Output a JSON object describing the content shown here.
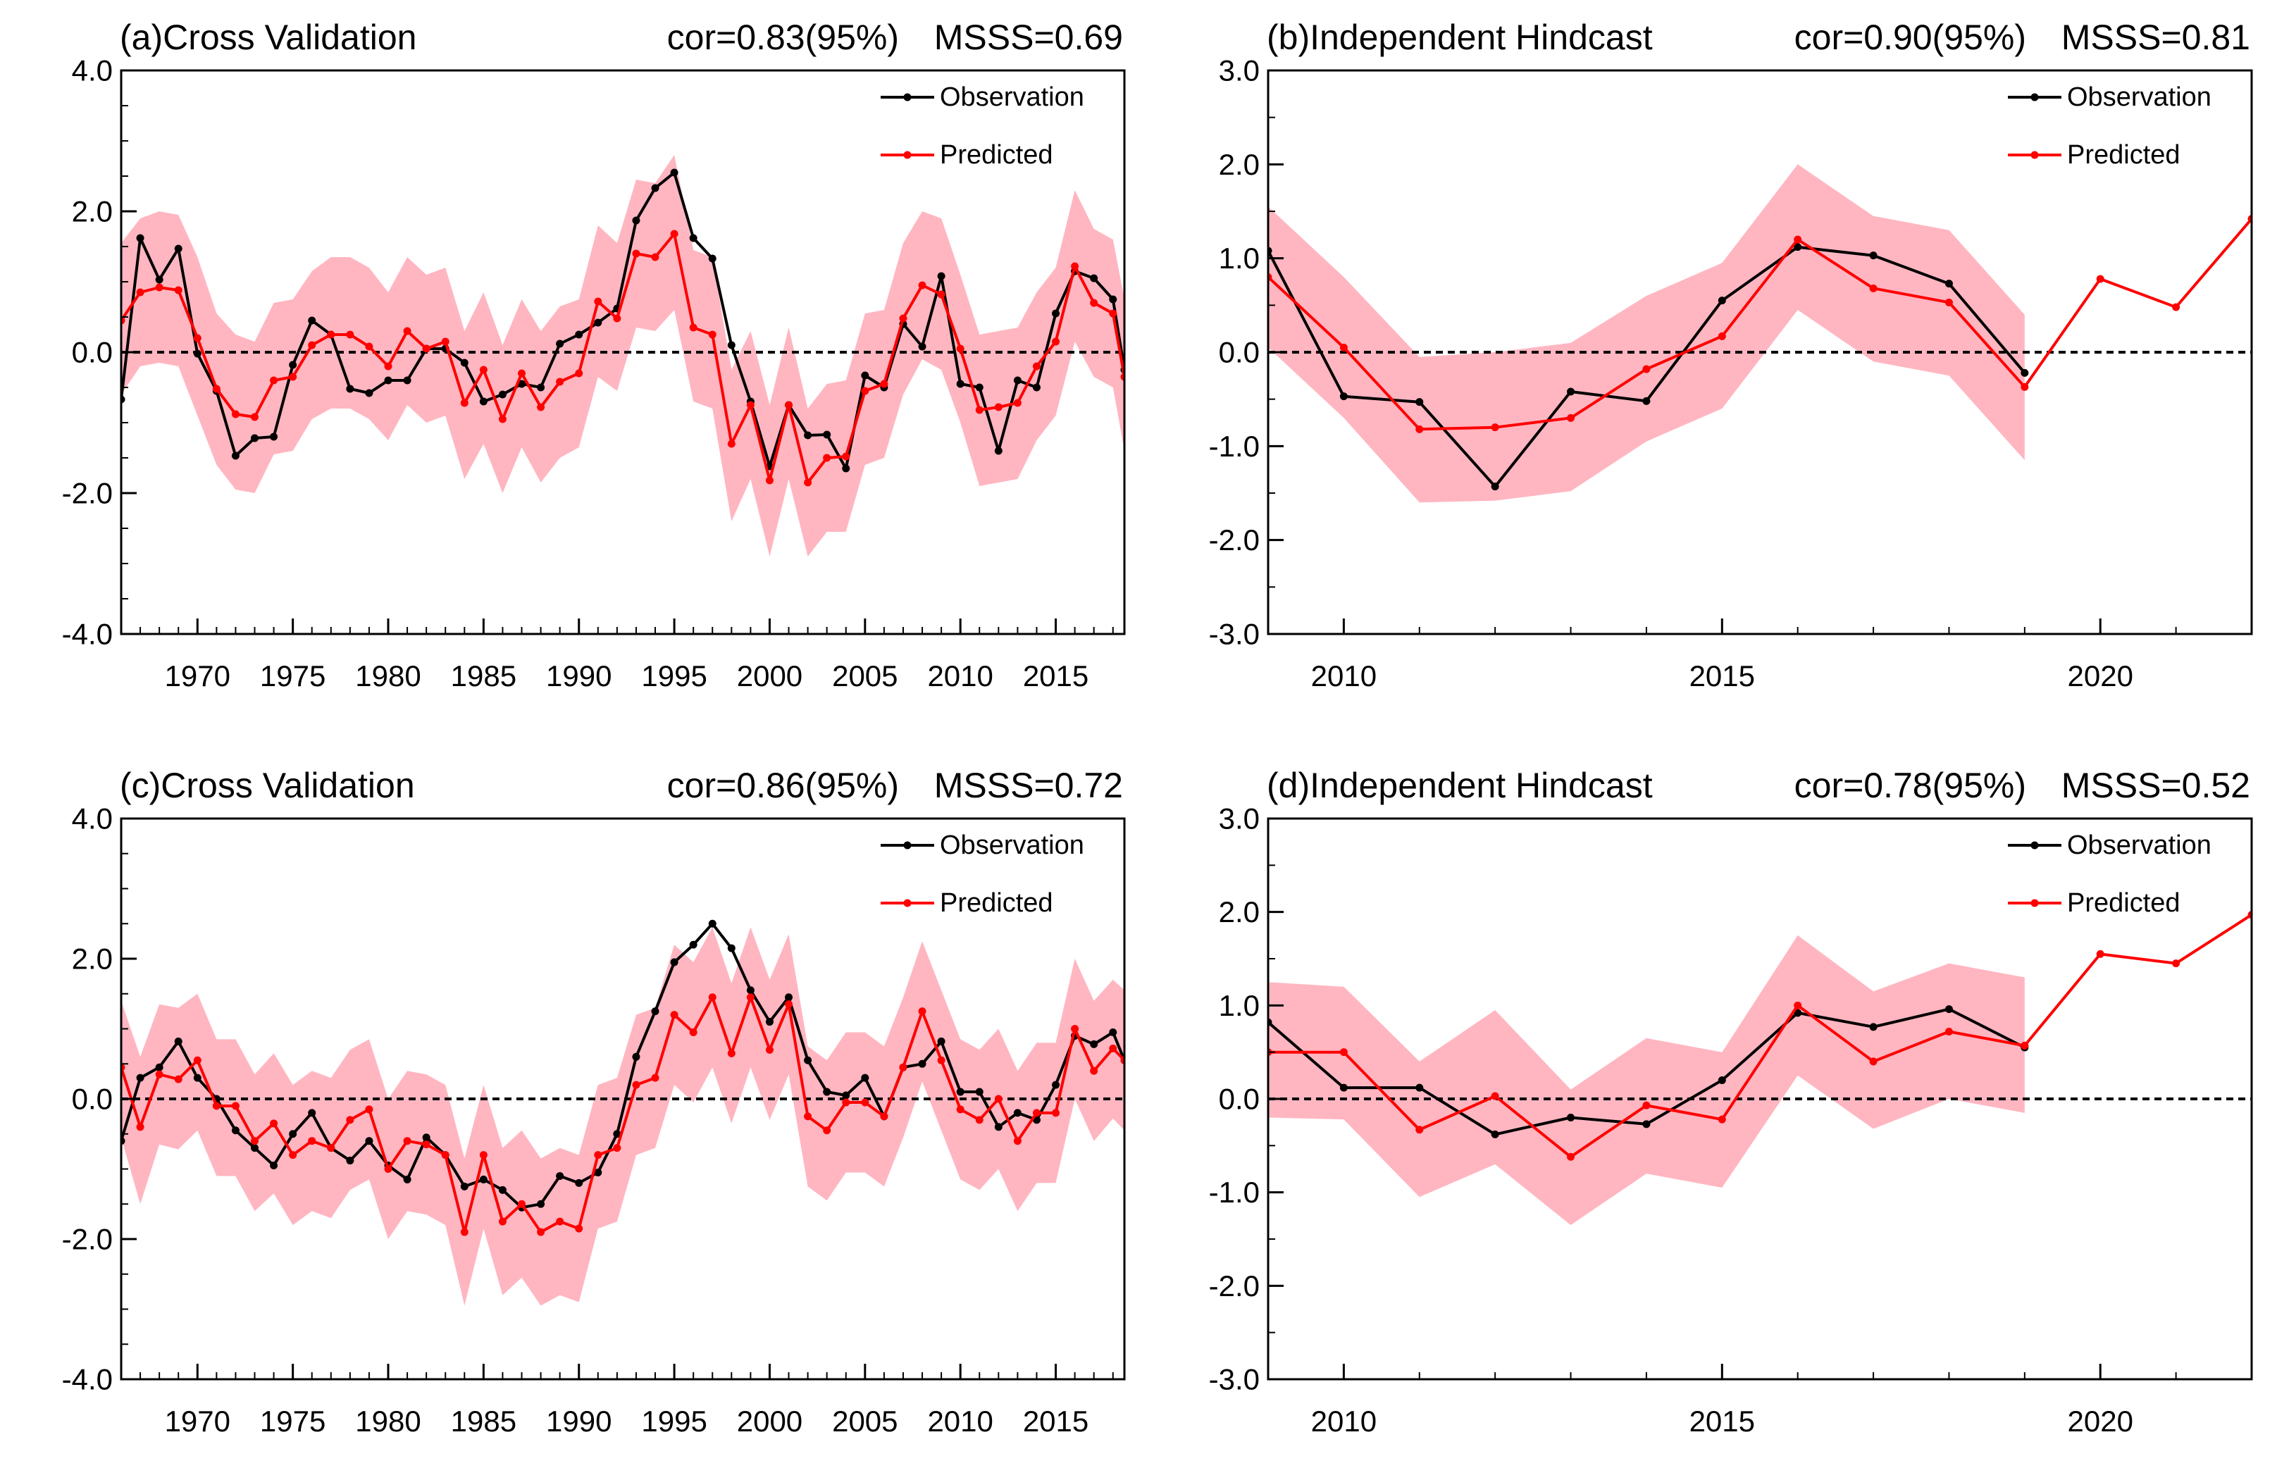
{
  "colors": {
    "observation": "#000000",
    "predicted": "#ff0000",
    "band": "#ffb6c1"
  },
  "chart_data": [
    {
      "type": "line",
      "title": "(a)Cross Validation",
      "stats": {
        "cor": "cor=0.83(95%)",
        "msss": "MSSS=0.69"
      },
      "xlim": [
        1966,
        2018.6
      ],
      "ylim": [
        -4,
        4
      ],
      "xticks": [
        1970,
        1975,
        1980,
        1985,
        1990,
        1995,
        2000,
        2005,
        2010,
        2015
      ],
      "xticklabels": [
        "1970",
        "1975",
        "1980",
        "1985",
        "1990",
        "1995",
        "2000",
        "2005",
        "2010",
        "2015"
      ],
      "yticks": [
        4,
        2,
        0,
        -2,
        -4
      ],
      "yticklabels": [
        "4.0",
        "2.0",
        "0.0",
        "-2.0",
        "-4.0"
      ],
      "yminor_step": 0.5,
      "xminor_step": 1,
      "legend": [
        "Observation",
        "Predicted"
      ],
      "x": [
        1966,
        1967,
        1968,
        1969,
        1970,
        1971,
        1972,
        1973,
        1974,
        1975,
        1976,
        1977,
        1978,
        1979,
        1980,
        1981,
        1982,
        1983,
        1984,
        1985,
        1986,
        1987,
        1988,
        1989,
        1990,
        1991,
        1992,
        1993,
        1994,
        1995,
        1996,
        1997,
        1998,
        1999,
        2000,
        2001,
        2002,
        2003,
        2004,
        2005,
        2006,
        2007,
        2008,
        2009,
        2010,
        2011,
        2012,
        2013,
        2014,
        2015,
        2016,
        2017,
        2018,
        2018.6
      ],
      "series": [
        {
          "name": "Observation",
          "values": [
            -0.67,
            1.62,
            1.03,
            1.47,
            -0.02,
            -0.55,
            -1.47,
            -1.22,
            -1.2,
            -0.18,
            0.45,
            0.25,
            -0.52,
            -0.58,
            -0.4,
            -0.4,
            0.05,
            0.05,
            -0.15,
            -0.7,
            -0.6,
            -0.45,
            -0.5,
            0.12,
            0.25,
            0.42,
            0.62,
            1.87,
            2.33,
            2.55,
            1.62,
            1.33,
            0.1,
            -0.7,
            -1.62,
            -0.75,
            -1.18,
            -1.17,
            -1.65,
            -0.33,
            -0.5,
            0.4,
            0.08,
            1.08,
            -0.45,
            -0.5,
            -1.4,
            -0.4,
            -0.5,
            0.55,
            1.15,
            1.05,
            0.75,
            -0.25
          ]
        },
        {
          "name": "Predicted",
          "values": [
            0.45,
            0.85,
            0.92,
            0.88,
            0.2,
            -0.52,
            -0.88,
            -0.92,
            -0.4,
            -0.35,
            0.1,
            0.25,
            0.25,
            0.08,
            -0.2,
            0.3,
            0.05,
            0.15,
            -0.72,
            -0.25,
            -0.95,
            -0.3,
            -0.78,
            -0.42,
            -0.3,
            0.72,
            0.48,
            1.4,
            1.35,
            1.68,
            0.35,
            0.25,
            -1.3,
            -0.75,
            -1.82,
            -0.75,
            -1.85,
            -1.5,
            -1.48,
            -0.55,
            -0.45,
            0.48,
            0.95,
            0.82,
            0.05,
            -0.82,
            -0.78,
            -0.72,
            -0.2,
            0.15,
            1.22,
            0.7,
            0.55,
            -0.35
          ]
        }
      ],
      "band_upper": [
        1.55,
        1.9,
        2.0,
        1.95,
        1.35,
        0.55,
        0.25,
        0.15,
        0.7,
        0.75,
        1.15,
        1.35,
        1.35,
        1.2,
        0.85,
        1.35,
        1.1,
        1.2,
        0.3,
        0.85,
        0.1,
        0.75,
        0.3,
        0.65,
        0.75,
        1.8,
        1.55,
        2.45,
        2.4,
        2.8,
        1.45,
        1.35,
        -0.25,
        0.3,
        -0.75,
        0.35,
        -0.8,
        -0.45,
        -0.4,
        0.55,
        0.6,
        1.55,
        2.0,
        1.9,
        1.1,
        0.25,
        0.3,
        0.35,
        0.85,
        1.2,
        2.3,
        1.75,
        1.6,
        0.75
      ],
      "band_lower": [
        -0.6,
        -0.2,
        -0.15,
        -0.2,
        -0.9,
        -1.6,
        -1.95,
        -2.0,
        -1.45,
        -1.4,
        -0.95,
        -0.8,
        -0.8,
        -0.95,
        -1.25,
        -0.75,
        -1.0,
        -0.9,
        -1.8,
        -1.3,
        -2.0,
        -1.35,
        -1.85,
        -1.5,
        -1.35,
        -0.35,
        -0.55,
        0.35,
        0.3,
        0.6,
        -0.7,
        -0.8,
        -2.4,
        -1.8,
        -2.9,
        -1.8,
        -2.9,
        -2.55,
        -2.55,
        -1.6,
        -1.5,
        -0.6,
        -0.1,
        -0.25,
        -1.0,
        -1.9,
        -1.85,
        -1.8,
        -1.25,
        -0.9,
        0.15,
        -0.35,
        -0.5,
        -1.4
      ]
    },
    {
      "type": "line",
      "title": "(b)Independent Hindcast",
      "stats": {
        "cor": "cor=0.90(95%)",
        "msss": "MSSS=0.81"
      },
      "xlim": [
        2009,
        2022
      ],
      "ylim": [
        -3,
        3
      ],
      "xticks": [
        2010,
        2015,
        2020
      ],
      "xticklabels": [
        "2010",
        "2015",
        "2020"
      ],
      "yticks": [
        3,
        2,
        1,
        0,
        -1,
        -2,
        -3
      ],
      "yticklabels": [
        "3.0",
        "2.0",
        "1.0",
        "0.0",
        "-1.0",
        "-2.0",
        "-3.0"
      ],
      "yminor_step": 0.5,
      "xminor_step": 1,
      "legend": [
        "Observation",
        "Predicted"
      ],
      "series": [
        {
          "name": "Observation",
          "x": [
            2009,
            2010,
            2011,
            2012,
            2013,
            2014,
            2015,
            2016,
            2017,
            2018,
            2019
          ],
          "values": [
            1.08,
            -0.47,
            -0.53,
            -1.43,
            -0.42,
            -0.52,
            0.55,
            1.12,
            1.03,
            0.73,
            -0.22
          ]
        },
        {
          "name": "Predicted",
          "x": [
            2009,
            2010,
            2011,
            2012,
            2013,
            2014,
            2015,
            2016,
            2017,
            2018,
            2019,
            2020,
            2021,
            2022
          ],
          "values": [
            0.8,
            0.05,
            -0.82,
            -0.8,
            -0.7,
            -0.18,
            0.17,
            1.2,
            0.68,
            0.53,
            -0.37,
            0.78,
            0.48,
            1.42
          ]
        }
      ],
      "band_x": [
        2009,
        2010,
        2011,
        2012,
        2013,
        2014,
        2015,
        2016,
        2017,
        2018,
        2019
      ],
      "band_upper": [
        1.55,
        0.8,
        -0.05,
        0.0,
        0.1,
        0.6,
        0.95,
        2.0,
        1.45,
        1.3,
        0.4
      ],
      "band_lower": [
        0.05,
        -0.7,
        -1.6,
        -1.58,
        -1.48,
        -0.95,
        -0.6,
        0.45,
        -0.1,
        -0.25,
        -1.15
      ]
    },
    {
      "type": "line",
      "title": "(c)Cross Validation",
      "stats": {
        "cor": "cor=0.86(95%)",
        "msss": "MSSS=0.72"
      },
      "xlim": [
        1966,
        2018.6
      ],
      "ylim": [
        -4,
        4
      ],
      "xticks": [
        1970,
        1975,
        1980,
        1985,
        1990,
        1995,
        2000,
        2005,
        2010,
        2015
      ],
      "xticklabels": [
        "1970",
        "1975",
        "1980",
        "1985",
        "1990",
        "1995",
        "2000",
        "2005",
        "2010",
        "2015"
      ],
      "yticks": [
        4,
        2,
        0,
        -2,
        -4
      ],
      "yticklabels": [
        "4.0",
        "2.0",
        "0.0",
        "-2.0",
        "-4.0"
      ],
      "yminor_step": 0.5,
      "xminor_step": 1,
      "legend": [
        "Observation",
        "Predicted"
      ],
      "x": [
        1966,
        1967,
        1968,
        1969,
        1970,
        1971,
        1972,
        1973,
        1974,
        1975,
        1976,
        1977,
        1978,
        1979,
        1980,
        1981,
        1982,
        1983,
        1984,
        1985,
        1986,
        1987,
        1988,
        1989,
        1990,
        1991,
        1992,
        1993,
        1994,
        1995,
        1996,
        1997,
        1998,
        1999,
        2000,
        2001,
        2002,
        2003,
        2004,
        2005,
        2006,
        2007,
        2008,
        2009,
        2010,
        2011,
        2012,
        2013,
        2014,
        2015,
        2016,
        2017,
        2018,
        2018.6
      ],
      "series": [
        {
          "name": "Observation",
          "values": [
            -0.6,
            0.3,
            0.45,
            0.82,
            0.3,
            0.0,
            -0.45,
            -0.7,
            -0.95,
            -0.5,
            -0.2,
            -0.7,
            -0.88,
            -0.6,
            -0.95,
            -1.15,
            -0.55,
            -0.8,
            -1.25,
            -1.15,
            -1.3,
            -1.55,
            -1.5,
            -1.1,
            -1.2,
            -1.05,
            -0.5,
            0.6,
            1.25,
            1.95,
            2.2,
            2.5,
            2.15,
            1.55,
            1.1,
            1.45,
            0.55,
            0.1,
            0.05,
            0.3,
            -0.25,
            0.45,
            0.5,
            0.82,
            0.1,
            0.1,
            -0.4,
            -0.2,
            -0.3,
            0.2,
            0.9,
            0.78,
            0.95,
            0.55
          ]
        },
        {
          "name": "Predicted",
          "values": [
            0.45,
            -0.4,
            0.35,
            0.28,
            0.55,
            -0.1,
            -0.1,
            -0.6,
            -0.35,
            -0.8,
            -0.6,
            -0.7,
            -0.3,
            -0.15,
            -1.0,
            -0.6,
            -0.65,
            -0.8,
            -1.9,
            -0.8,
            -1.75,
            -1.5,
            -1.9,
            -1.75,
            -1.85,
            -0.8,
            -0.7,
            0.2,
            0.3,
            1.2,
            0.95,
            1.45,
            0.65,
            1.45,
            0.7,
            1.35,
            -0.25,
            -0.45,
            -0.05,
            -0.05,
            -0.25,
            0.45,
            1.25,
            0.55,
            -0.15,
            -0.3,
            0.0,
            -0.6,
            -0.2,
            -0.2,
            1.0,
            0.4,
            0.72,
            0.55
          ]
        }
      ],
      "band_upper": [
        1.4,
        0.6,
        1.35,
        1.3,
        1.5,
        0.85,
        0.85,
        0.35,
        0.65,
        0.2,
        0.4,
        0.3,
        0.7,
        0.85,
        0.0,
        0.4,
        0.35,
        0.2,
        -0.85,
        0.2,
        -0.7,
        -0.45,
        -0.85,
        -0.7,
        -0.8,
        0.2,
        0.3,
        1.2,
        1.3,
        2.2,
        1.95,
        2.45,
        1.65,
        2.45,
        1.7,
        2.35,
        0.75,
        0.55,
        0.95,
        0.95,
        0.75,
        1.45,
        2.25,
        1.55,
        0.85,
        0.7,
        1.0,
        0.4,
        0.8,
        0.8,
        2.0,
        1.4,
        1.7,
        1.55
      ],
      "band_lower": [
        -0.55,
        -1.5,
        -0.65,
        -0.72,
        -0.45,
        -1.1,
        -1.1,
        -1.6,
        -1.35,
        -1.8,
        -1.6,
        -1.7,
        -1.3,
        -1.15,
        -2.0,
        -1.6,
        -1.65,
        -1.8,
        -2.95,
        -1.85,
        -2.8,
        -2.55,
        -2.95,
        -2.8,
        -2.9,
        -1.85,
        -1.75,
        -0.8,
        -0.7,
        0.2,
        -0.05,
        0.45,
        -0.35,
        0.45,
        -0.3,
        0.35,
        -1.25,
        -1.45,
        -1.05,
        -1.05,
        -1.25,
        -0.55,
        0.25,
        -0.45,
        -1.15,
        -1.3,
        -1.0,
        -1.6,
        -1.2,
        -1.2,
        0.0,
        -0.6,
        -0.28,
        -0.45
      ]
    },
    {
      "type": "line",
      "title": "(d)Independent Hindcast",
      "stats": {
        "cor": "cor=0.78(95%)",
        "msss": "MSSS=0.52"
      },
      "xlim": [
        2009,
        2022
      ],
      "ylim": [
        -3,
        3
      ],
      "xticks": [
        2010,
        2015,
        2020
      ],
      "xticklabels": [
        "2010",
        "2015",
        "2020"
      ],
      "yticks": [
        3,
        2,
        1,
        0,
        -1,
        -2,
        -3
      ],
      "yticklabels": [
        "3.0",
        "2.0",
        "1.0",
        "0.0",
        "-1.0",
        "-2.0",
        "-3.0"
      ],
      "yminor_step": 0.5,
      "xminor_step": 1,
      "legend": [
        "Observation",
        "Predicted"
      ],
      "series": [
        {
          "name": "Observation",
          "x": [
            2009,
            2010,
            2011,
            2012,
            2013,
            2014,
            2015,
            2016,
            2017,
            2018,
            2019
          ],
          "values": [
            0.82,
            0.12,
            0.12,
            -0.38,
            -0.2,
            -0.27,
            0.2,
            0.92,
            0.77,
            0.96,
            0.55
          ]
        },
        {
          "name": "Predicted",
          "x": [
            2009,
            2010,
            2011,
            2012,
            2013,
            2014,
            2015,
            2016,
            2017,
            2018,
            2019,
            2020,
            2021,
            2022
          ],
          "values": [
            0.5,
            0.5,
            -0.33,
            0.03,
            -0.62,
            -0.07,
            -0.22,
            1.0,
            0.4,
            0.72,
            0.57,
            1.55,
            1.45,
            1.97
          ]
        }
      ],
      "band_x": [
        2009,
        2010,
        2011,
        2012,
        2013,
        2014,
        2015,
        2016,
        2017,
        2018,
        2019
      ],
      "band_upper": [
        1.25,
        1.2,
        0.4,
        0.95,
        0.1,
        0.65,
        0.5,
        1.75,
        1.15,
        1.45,
        1.3
      ],
      "band_lower": [
        -0.2,
        -0.22,
        -1.05,
        -0.7,
        -1.35,
        -0.8,
        -0.95,
        0.25,
        -0.32,
        0.0,
        -0.15
      ]
    }
  ]
}
